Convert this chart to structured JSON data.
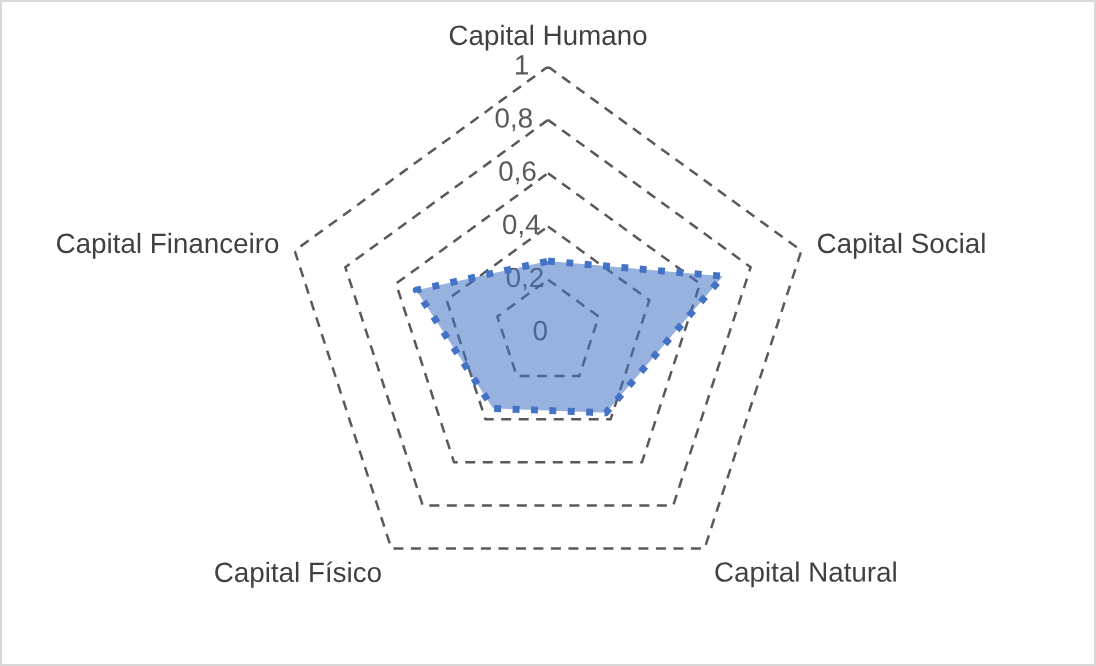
{
  "chart_data": {
    "type": "radar",
    "categories": [
      "Capital Humano",
      "Capital Social",
      "Capital Natural",
      "Capital Físico",
      "Capital Financeiro"
    ],
    "series": [
      {
        "color": "#4472c4",
        "values": [
          0.27,
          0.69,
          0.37,
          0.35,
          0.52
        ]
      }
    ],
    "ylim": [
      0,
      1
    ],
    "yticks": [
      0,
      {
        "value": 0.2,
        "label": "0,2"
      },
      {
        "value": 0.4,
        "label": "0,4"
      },
      {
        "value": 0.6,
        "label": "0,6"
      },
      {
        "value": 0.8,
        "label": "0,8"
      },
      1
    ],
    "grid": true,
    "line_style": "dotted",
    "marker": "none",
    "legend": false
  }
}
